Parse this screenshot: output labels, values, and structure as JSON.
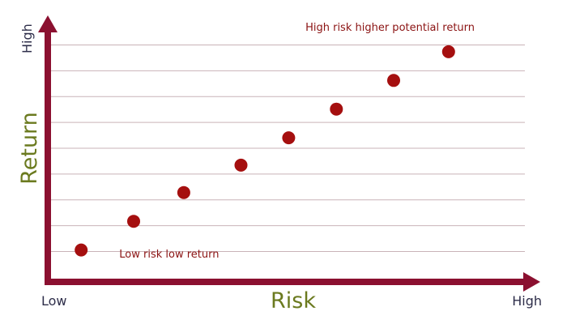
{
  "chart_data": {
    "type": "scatter",
    "title": "",
    "xlabel": "Risk",
    "ylabel": "Return",
    "x_tick_labels": {
      "min": "Low",
      "max": "High"
    },
    "y_tick_labels": {
      "max": "High"
    },
    "xlim": [
      0,
      10
    ],
    "ylim": [
      0,
      10
    ],
    "grid": true,
    "legend": "none",
    "x": [
      0.7,
      1.8,
      2.85,
      4.05,
      5.05,
      6.05,
      7.25,
      8.4
    ],
    "y": [
      1.1,
      2.2,
      3.3,
      4.35,
      5.4,
      6.5,
      7.6,
      8.7
    ],
    "annotations": [
      {
        "text": "Low risk low return",
        "x": 1.5,
        "y": 0.8
      },
      {
        "text": "High risk higher potential return",
        "x": 5.4,
        "y": 9.5
      }
    ],
    "colors": {
      "axis": "#8b1030",
      "point": "#a50f0f",
      "annotation": "#8b1313",
      "axis_title": "#6b7a1f",
      "grid": "#c9b3b8",
      "tick_label": "#2e2e4a"
    }
  }
}
